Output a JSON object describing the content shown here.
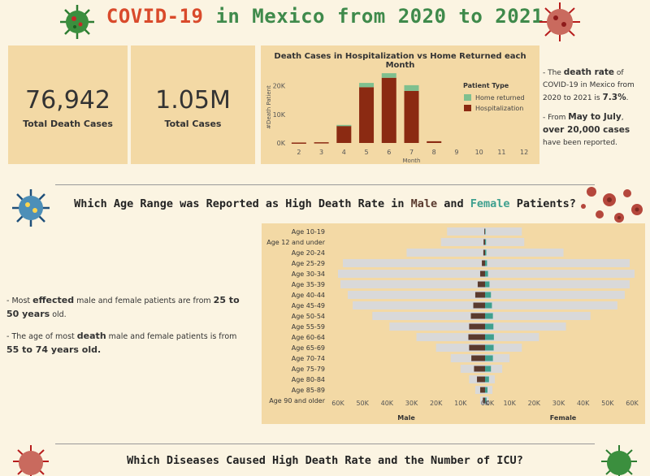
{
  "header": {
    "title_parts": [
      "COVID-19",
      " in Mexico from 2020 to 2021"
    ]
  },
  "kpis": [
    {
      "value": "76,942",
      "label": "Total Death Cases"
    },
    {
      "value": "1.05M",
      "label": "Total Cases"
    }
  ],
  "notes_top": {
    "p1_a": "- The ",
    "p1_b": "death rate",
    "p1_c": " of COVID-19 in Mexico from 2020 to 2021 is ",
    "p1_d": "7.3%",
    "p1_e": ".",
    "p2_a": "- From ",
    "p2_b": "May to July",
    "p2_c": ", ",
    "p2_d": "over 20,000 cases",
    "p2_e": " have been reported."
  },
  "section1": {
    "title_a": "Which Age Range was Reported as High Death Rate in ",
    "title_male": "Male",
    "title_and": " and ",
    "title_female": "Female",
    "title_end": " Patients?",
    "male_color": "#5a3a2e",
    "female_color": "#3fa08f"
  },
  "notes_left": {
    "p1_a": "- Most ",
    "p1_b": "effected",
    "p1_c": " male and female patients are from ",
    "p1_d": "25 to 50 years",
    "p1_e": " old.",
    "p2_a": "- The age of most ",
    "p2_b": "death",
    "p2_c": " male and female patients is from ",
    "p2_d": "55 to 74 years old."
  },
  "section2": {
    "title": "Which Diseases Caused High Death Rate and the Number of ICU?"
  },
  "chart_data": [
    {
      "type": "bar",
      "title": "Death Cases in Hospitalization  vs Home Returned each Month",
      "xlabel": "Month",
      "ylabel": "#Death Patient",
      "categories": [
        "2",
        "3",
        "4",
        "5",
        "6",
        "7",
        "8",
        "9",
        "10",
        "11",
        "12"
      ],
      "x_ticks": [
        "2",
        "3",
        "4",
        "5",
        "6",
        "7",
        "8",
        "9",
        "10",
        "11",
        "12"
      ],
      "y_ticks": [
        "0K",
        "10K",
        "20K"
      ],
      "ylim": [
        0,
        25000
      ],
      "stacked": true,
      "legend_title": "Patient Type",
      "legend_position": "right",
      "series": [
        {
          "name": "Hospitalization",
          "color": "#8b2a12",
          "values": [
            150,
            250,
            6000,
            19500,
            22800,
            18200,
            600,
            0,
            0,
            0,
            0
          ]
        },
        {
          "name": "Home returned",
          "color": "#7fc08f",
          "values": [
            0,
            0,
            300,
            1500,
            1600,
            2000,
            0,
            0,
            0,
            0,
            0
          ]
        }
      ]
    },
    {
      "type": "bar",
      "orientation": "horizontal-butterfly",
      "categories": [
        "Age 10-19",
        "Age 12 and under",
        "Age 20-24",
        "Age 25-29",
        "Age 30-34",
        "Age 35-39",
        "Age 40-44",
        "Age 45-49",
        "Age 50-54",
        "Age 55-59",
        "Age 60-64",
        "Age 65-69",
        "Age 70-74",
        "Age 75-79",
        "Age 80-84",
        "Age 85-89",
        "Age 90 and older"
      ],
      "x_ticks_left": [
        "60K",
        "50K",
        "40K",
        "30K",
        "20K",
        "10K",
        "0K"
      ],
      "x_ticks_right": [
        "0K",
        "10K",
        "20K",
        "30K",
        "40K",
        "50K",
        "60K"
      ],
      "xlim": [
        0,
        60000
      ],
      "left_label": "Male",
      "right_label": "Female",
      "series": [
        {
          "name": "Male total cases",
          "side": "left",
          "color": "#d9d9d9",
          "values": [
            15500,
            18000,
            32000,
            58000,
            60000,
            59000,
            56000,
            54000,
            46000,
            39000,
            28000,
            20000,
            14000,
            10000,
            6500,
            4000,
            2000
          ]
        },
        {
          "name": "Male deaths",
          "side": "left",
          "color": "#5a3a2e",
          "values": [
            300,
            600,
            700,
            1300,
            2000,
            3000,
            4000,
            4800,
            5800,
            6500,
            6800,
            6500,
            5600,
            4500,
            3300,
            2000,
            900
          ]
        },
        {
          "name": "Female total cases",
          "side": "right",
          "color": "#d9d9d9",
          "values": [
            15000,
            16000,
            32000,
            59000,
            61000,
            59000,
            57000,
            54000,
            43000,
            33000,
            22000,
            15000,
            10000,
            7000,
            4000,
            3000,
            1500
          ]
        },
        {
          "name": "Female deaths",
          "side": "right",
          "color": "#3fa08f",
          "values": [
            200,
            400,
            500,
            800,
            1200,
            1800,
            2400,
            2800,
            3200,
            3400,
            3600,
            3500,
            3200,
            2400,
            1600,
            1000,
            600
          ]
        }
      ]
    }
  ]
}
